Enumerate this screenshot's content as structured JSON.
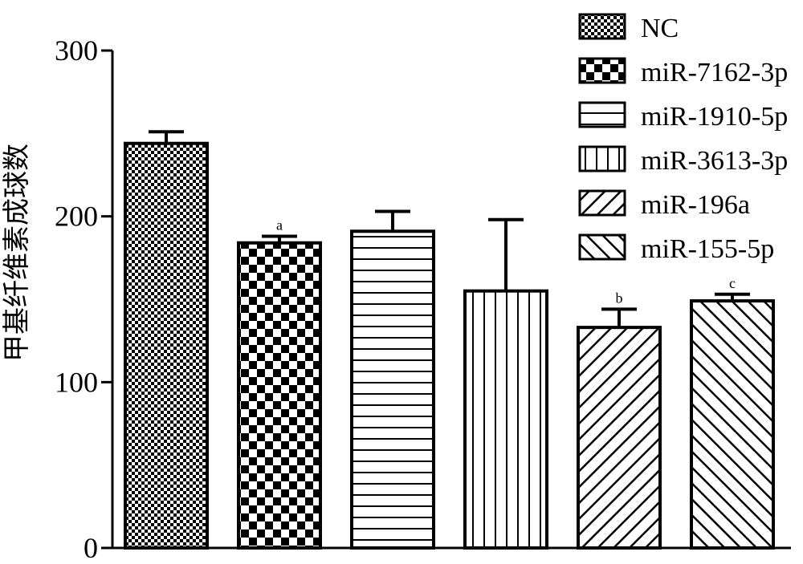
{
  "chart_data": {
    "type": "bar",
    "title": "",
    "xlabel": "",
    "ylabel": "甲基纤维素成球数",
    "ylim": [
      0,
      300
    ],
    "yticks": [
      0,
      100,
      200,
      300
    ],
    "grid": false,
    "legend_position": "top-right",
    "categories": [
      "NC",
      "miR-7162-3p",
      "miR-1910-5p",
      "miR-3613-3p",
      "miR-196a",
      "miR-155-5p"
    ],
    "values": [
      244,
      184,
      191,
      155,
      133,
      149
    ],
    "errors": [
      7,
      4,
      12,
      43,
      11,
      4
    ],
    "patterns": [
      "fine-check",
      "checker",
      "horizontal",
      "vertical",
      "diag-up",
      "diag-down"
    ],
    "annotations": [
      "",
      "a",
      "",
      "",
      "b",
      "c"
    ],
    "colors": {
      "bar_fill": "#ffffff",
      "stroke": "#000000"
    }
  }
}
